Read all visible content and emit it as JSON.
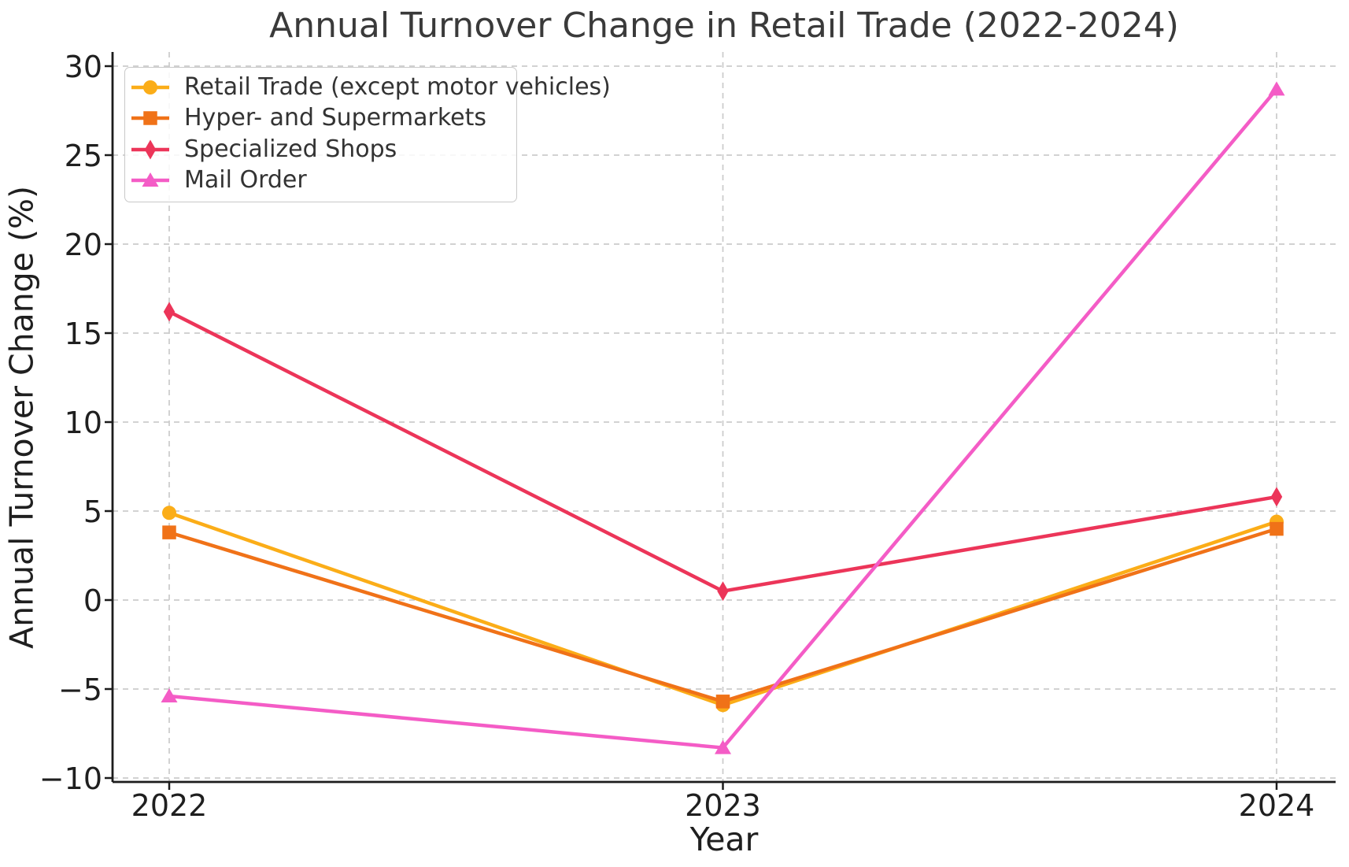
{
  "chart_data": {
    "type": "line",
    "title": "Annual Turnover Change in Retail Trade (2022-2024)",
    "xlabel": "Year",
    "ylabel": "Annual Turnover Change (%)",
    "x": [
      2022,
      2023,
      2024
    ],
    "xtick_labels": [
      "2022",
      "2023",
      "2024"
    ],
    "yticks": [
      -10,
      -5,
      0,
      5,
      10,
      15,
      20,
      25,
      30
    ],
    "ytick_labels": [
      "−10",
      "−5",
      "0",
      "5",
      "10",
      "15",
      "20",
      "25",
      "30"
    ],
    "ylim": [
      -10.3,
      30.8
    ],
    "grid": true,
    "grid_style": "dashed",
    "legend_position": "upper-left",
    "colors": {
      "background": "#ffffff",
      "axis": "#1c1c1c",
      "grid": "#cbcbcb",
      "text": "#1f1f1f",
      "title_text": "#3a3a3a"
    },
    "series": [
      {
        "name": "Retail Trade (except motor vehicles)",
        "marker": "circle",
        "color": "#FBAD18",
        "values": [
          4.9,
          -5.9,
          4.4
        ]
      },
      {
        "name": "Hyper- and Supermarkets",
        "marker": "square",
        "color": "#F07218",
        "values": [
          3.8,
          -5.7,
          4.0
        ]
      },
      {
        "name": "Specialized Shops",
        "marker": "diamond",
        "color": "#EC3559",
        "values": [
          16.2,
          0.5,
          5.8
        ]
      },
      {
        "name": "Mail Order",
        "marker": "triangle",
        "color": "#F45CC6",
        "values": [
          -5.4,
          -8.3,
          28.7
        ]
      }
    ]
  }
}
